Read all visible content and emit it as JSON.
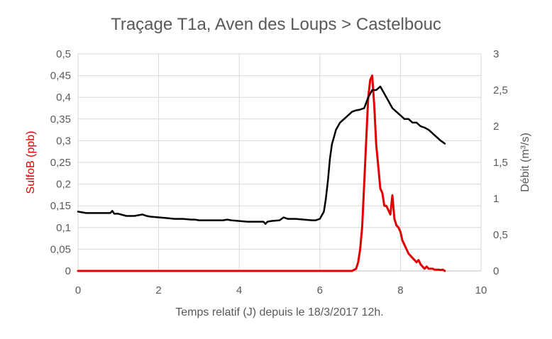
{
  "chart_data": {
    "type": "line",
    "title": "Traçage T1a, Aven des Loups > Castelbouc",
    "xlabel": "Temps relatif (J) depuis le 18/3/2017 12h.",
    "ylabel_left": "SulfoB (ppb)",
    "ylabel_right": "Débit (m³/s)",
    "xlim": [
      0,
      10
    ],
    "ylim_left": [
      0,
      0.5
    ],
    "ylim_right": [
      0,
      3
    ],
    "x_ticks": [
      "0",
      "2",
      "4",
      "6",
      "8",
      "10"
    ],
    "y_left_ticks": [
      "0",
      "0,05",
      "0,1",
      "0,15",
      "0,2",
      "0,25",
      "0,3",
      "0,35",
      "0,4",
      "0,45",
      "0,5"
    ],
    "y_right_ticks": [
      "0",
      "0,5",
      "1",
      "1,5",
      "2",
      "2,5",
      "3"
    ],
    "grid": true,
    "colors": {
      "sulfob": "#e00000",
      "debit": "#000000",
      "left_axis_title": "#e00000",
      "grid": "#d9d9d9",
      "text": "#595959"
    },
    "series": [
      {
        "axis": "left",
        "color": "#e00000",
        "x": [
          0,
          1,
          2,
          3,
          4,
          5,
          6,
          6.8,
          6.9,
          6.95,
          7.0,
          7.05,
          7.1,
          7.15,
          7.2,
          7.25,
          7.3,
          7.35,
          7.4,
          7.45,
          7.5,
          7.55,
          7.6,
          7.65,
          7.7,
          7.75,
          7.8,
          7.85,
          7.9,
          7.95,
          8.0,
          8.05,
          8.1,
          8.15,
          8.2,
          8.25,
          8.3,
          8.35,
          8.4,
          8.45,
          8.5,
          8.55,
          8.6,
          8.65,
          8.7,
          8.75,
          8.8,
          8.85,
          8.9,
          8.95,
          9.0,
          9.05,
          9.1
        ],
        "values": [
          0,
          0,
          0,
          0,
          0,
          0,
          0,
          0,
          0.005,
          0.02,
          0.05,
          0.1,
          0.2,
          0.3,
          0.4,
          0.44,
          0.45,
          0.38,
          0.29,
          0.24,
          0.19,
          0.18,
          0.15,
          0.15,
          0.14,
          0.13,
          0.174,
          0.12,
          0.105,
          0.1,
          0.09,
          0.07,
          0.06,
          0.05,
          0.04,
          0.035,
          0.03,
          0.025,
          0.02,
          0.025,
          0.015,
          0.01,
          0.005,
          0.01,
          0.005,
          0.005,
          0.005,
          0.003,
          0.003,
          0.003,
          0.002,
          0.003,
          0.0
        ],
        "line_width": 3
      },
      {
        "axis": "right",
        "color": "#000000",
        "x": [
          0,
          0.2,
          0.4,
          0.6,
          0.8,
          0.85,
          0.9,
          1.0,
          1.2,
          1.4,
          1.6,
          1.7,
          1.8,
          2.0,
          2.2,
          2.4,
          2.6,
          2.8,
          2.9,
          3.0,
          3.2,
          3.4,
          3.6,
          3.7,
          3.8,
          4.0,
          4.2,
          4.4,
          4.6,
          4.65,
          4.7,
          4.8,
          5.0,
          5.1,
          5.2,
          5.4,
          5.6,
          5.8,
          5.9,
          6.0,
          6.1,
          6.15,
          6.2,
          6.25,
          6.3,
          6.35,
          6.4,
          6.5,
          6.6,
          6.7,
          6.8,
          6.9,
          7.0,
          7.1,
          7.2,
          7.3,
          7.4,
          7.5,
          7.55,
          7.6,
          7.7,
          7.8,
          7.9,
          8.0,
          8.1,
          8.2,
          8.3,
          8.4,
          8.5,
          8.6,
          8.7,
          8.8,
          8.9,
          9.0,
          9.1
        ],
        "values": [
          0.82,
          0.8,
          0.8,
          0.8,
          0.8,
          0.83,
          0.79,
          0.79,
          0.76,
          0.76,
          0.78,
          0.76,
          0.75,
          0.74,
          0.73,
          0.72,
          0.72,
          0.71,
          0.71,
          0.7,
          0.7,
          0.7,
          0.7,
          0.71,
          0.7,
          0.69,
          0.68,
          0.68,
          0.68,
          0.65,
          0.68,
          0.69,
          0.7,
          0.74,
          0.72,
          0.72,
          0.71,
          0.7,
          0.7,
          0.72,
          0.82,
          1.0,
          1.25,
          1.55,
          1.75,
          1.85,
          1.95,
          2.05,
          2.1,
          2.15,
          2.2,
          2.22,
          2.23,
          2.25,
          2.4,
          2.5,
          2.5,
          2.55,
          2.5,
          2.45,
          2.35,
          2.25,
          2.2,
          2.15,
          2.1,
          2.1,
          2.05,
          2.05,
          2.0,
          1.98,
          1.95,
          1.9,
          1.85,
          1.8,
          1.76
        ],
        "line_width": 2.5
      }
    ]
  }
}
